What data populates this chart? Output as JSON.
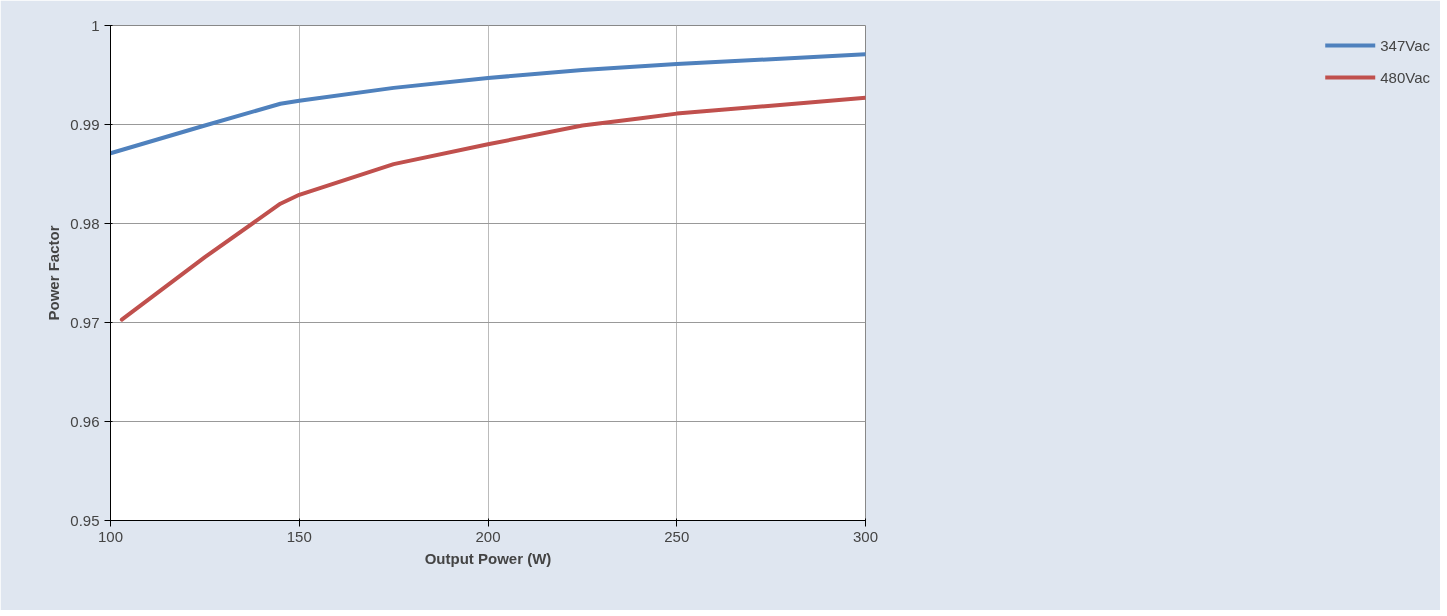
{
  "chart_data": {
    "type": "line",
    "xlabel": "Output Power (W)",
    "ylabel": "Power Factor",
    "xlim": [
      100,
      300
    ],
    "xticks": [
      100,
      150,
      200,
      250,
      300
    ],
    "ylim": [
      0.95,
      1
    ],
    "yticks": [
      0.95,
      0.96,
      0.97,
      0.98,
      0.99,
      1
    ],
    "grid": true,
    "legend": "right",
    "line_style": "solid",
    "marker": "none",
    "series": [
      {
        "name": "347Vac",
        "color": "#4f81bd",
        "x": [
          100,
          125,
          145,
          150,
          175,
          200,
          225,
          250,
          275,
          300
        ],
        "values": [
          0.9871,
          0.9899,
          0.9921,
          0.9924,
          0.9937,
          0.9947,
          0.9955,
          0.9961,
          0.9966,
          0.9971
        ]
      },
      {
        "name": "480Vac",
        "color": "#c0504d",
        "x": [
          103,
          125,
          145,
          150,
          175,
          200,
          225,
          240,
          250,
          275,
          300
        ],
        "values": [
          0.9703,
          0.9766,
          0.982,
          0.9829,
          0.986,
          0.988,
          0.9899,
          0.9906,
          0.9911,
          0.9919,
          0.9927
        ]
      }
    ]
  }
}
